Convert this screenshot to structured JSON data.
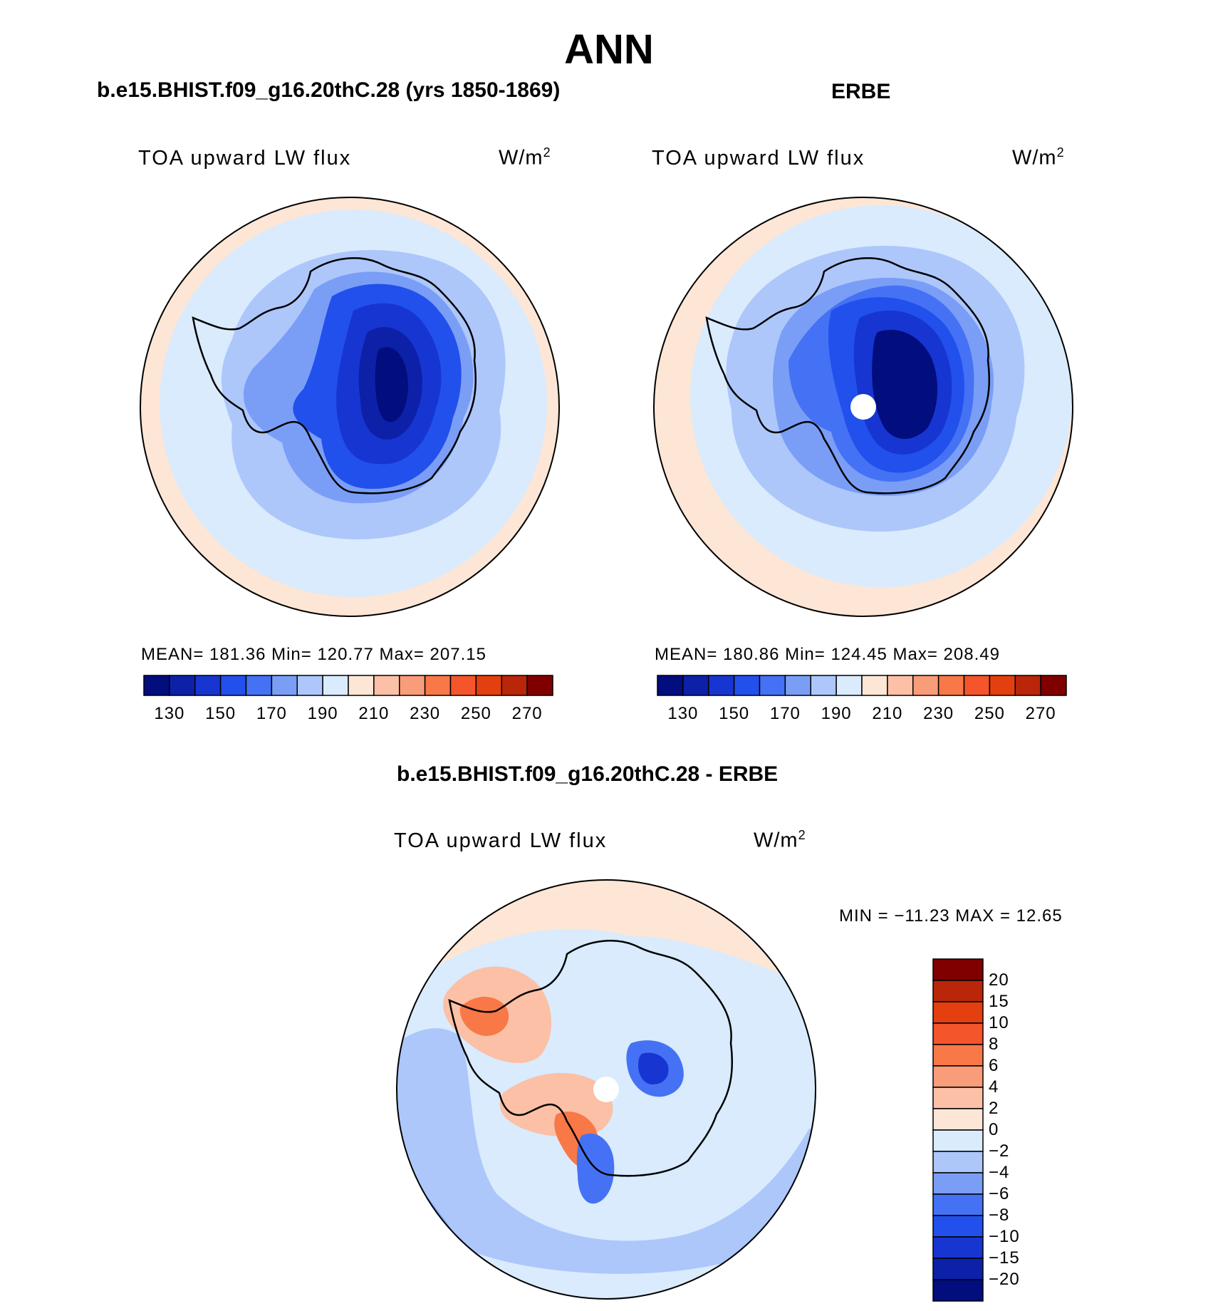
{
  "title": "ANN",
  "colors": {
    "abs_scale": [
      "#020d7e",
      "#0c21a8",
      "#1735d1",
      "#2250ec",
      "#4572f4",
      "#7a9ef6",
      "#adc7fb",
      "#d9ebfd",
      "#fde6d6",
      "#fbc0a6",
      "#f99c79",
      "#f87848",
      "#f5552a",
      "#e43f0f",
      "#b9260a",
      "#800000"
    ],
    "diff_scale": [
      "#020d7e",
      "#0c21a8",
      "#1735d1",
      "#2250ec",
      "#4572f4",
      "#7a9ef6",
      "#adc7fb",
      "#d9ebfd",
      "#fde6d6",
      "#fbc0a6",
      "#f99c79",
      "#f87848",
      "#f5552a",
      "#e43f0f",
      "#b9260a",
      "#800000"
    ],
    "coastline": "#000000",
    "missing": "#ffffff"
  },
  "panels": {
    "model": {
      "title": "b.e15.BHIST.f09_g16.20thC.28 (yrs 1850-1869)",
      "variable": "TOA upward LW flux",
      "units": "W/m",
      "units_exp": "2",
      "stats": "MEAN=  181.36   Min=  120.77   Max=  207.15",
      "cbar_ticks": [
        "130",
        "150",
        "170",
        "190",
        "210",
        "230",
        "250",
        "270"
      ]
    },
    "obs": {
      "title": "ERBE",
      "variable": "TOA upward LW flux",
      "units": "W/m",
      "units_exp": "2",
      "stats": "MEAN=  180.86   Min=  124.45   Max=  208.49",
      "cbar_ticks": [
        "130",
        "150",
        "170",
        "190",
        "210",
        "230",
        "250",
        "270"
      ]
    },
    "diff": {
      "title": "b.e15.BHIST.f09_g16.20thC.28 - ERBE",
      "variable": "TOA upward LW flux",
      "units": "W/m",
      "units_exp": "2",
      "stats": "MIN = −11.23 MAX =   12.65",
      "cbar_ticks": [
        "20",
        "15",
        "10",
        "8",
        "6",
        "4",
        "2",
        "0",
        "−2",
        "−4",
        "−6",
        "−8",
        "−10",
        "−15",
        "−20"
      ]
    }
  },
  "chart_data": {
    "type": "heatmap",
    "projection": "south polar stereographic",
    "maps": [
      {
        "name": "b.e15.BHIST.f09_g16.20thC.28 (yrs 1850-1869)",
        "mean": 181.36,
        "min": 120.77,
        "max": 207.15,
        "levels": [
          130,
          150,
          170,
          190,
          210,
          230,
          250,
          270
        ]
      },
      {
        "name": "ERBE",
        "mean": 180.86,
        "min": 124.45,
        "max": 208.49,
        "levels": [
          130,
          150,
          170,
          190,
          210,
          230,
          250,
          270
        ]
      },
      {
        "name": "b.e15.BHIST.f09_g16.20thC.28 - ERBE",
        "min": -11.23,
        "max": 12.65,
        "levels": [
          -20,
          -15,
          -10,
          -8,
          -6,
          -4,
          -2,
          0,
          2,
          4,
          6,
          8,
          10,
          15,
          20
        ]
      }
    ]
  }
}
